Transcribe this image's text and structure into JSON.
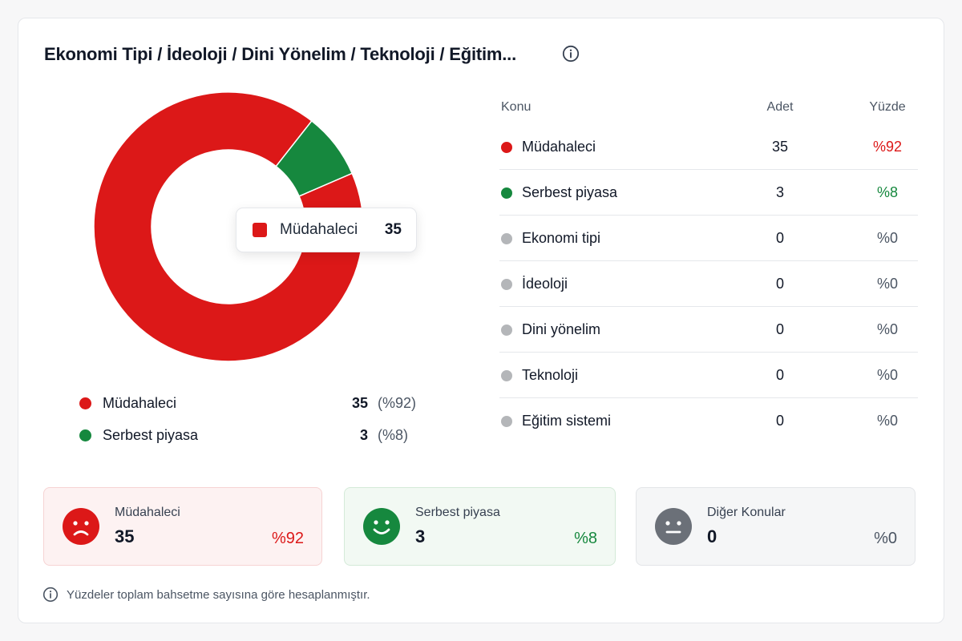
{
  "header": {
    "title": "Ekonomi Tipi / İdeoloji / Dini Yönelim / Teknoloji / Eğitim..."
  },
  "colors": {
    "red": "#dc1818",
    "green": "#16883e",
    "gray": "#b4b6b9",
    "gray_face": "#6b7078"
  },
  "chart_data": {
    "type": "pie",
    "donut": true,
    "slices": [
      {
        "label": "Müdahaleci",
        "value": 35,
        "percent": 92,
        "color": "#dc1818"
      },
      {
        "label": "Serbest piyasa",
        "value": 3,
        "percent": 8,
        "color": "#16883e"
      }
    ]
  },
  "tooltip": {
    "label": "Müdahaleci",
    "value": "35"
  },
  "legend": [
    {
      "label": "Müdahaleci",
      "count": "35",
      "percent": "(%92)",
      "color": "#dc1818"
    },
    {
      "label": "Serbest piyasa",
      "count": "3",
      "percent": "(%8)",
      "color": "#16883e"
    }
  ],
  "table": {
    "headers": {
      "topic": "Konu",
      "count": "Adet",
      "percent": "Yüzde"
    },
    "rows": [
      {
        "label": "Müdahaleci",
        "count": "35",
        "percent": "%92",
        "color": "#dc1818",
        "pct_color": "#dc1818"
      },
      {
        "label": "Serbest piyasa",
        "count": "3",
        "percent": "%8",
        "color": "#16883e",
        "pct_color": "#16883e"
      },
      {
        "label": "Ekonomi tipi",
        "count": "0",
        "percent": "%0",
        "color": "#b4b6b9",
        "pct_color": "#4b5563"
      },
      {
        "label": "İdeoloji",
        "count": "0",
        "percent": "%0",
        "color": "#b4b6b9",
        "pct_color": "#4b5563"
      },
      {
        "label": "Dini yönelim",
        "count": "0",
        "percent": "%0",
        "color": "#b4b6b9",
        "pct_color": "#4b5563"
      },
      {
        "label": "Teknoloji",
        "count": "0",
        "percent": "%0",
        "color": "#b4b6b9",
        "pct_color": "#4b5563"
      },
      {
        "label": "Eğitim sistemi",
        "count": "0",
        "percent": "%0",
        "color": "#b4b6b9",
        "pct_color": "#4b5563"
      }
    ]
  },
  "summary": {
    "red": {
      "label": "Müdahaleci",
      "value": "35",
      "percent": "%92",
      "icon": "sad-face-icon"
    },
    "green": {
      "label": "Serbest piyasa",
      "value": "3",
      "percent": "%8",
      "icon": "happy-face-icon"
    },
    "gray": {
      "label": "Diğer Konular",
      "value": "0",
      "percent": "%0",
      "icon": "neutral-face-icon"
    }
  },
  "footer": {
    "note": "Yüzdeler toplam bahsetme sayısına göre hesaplanmıştır."
  }
}
